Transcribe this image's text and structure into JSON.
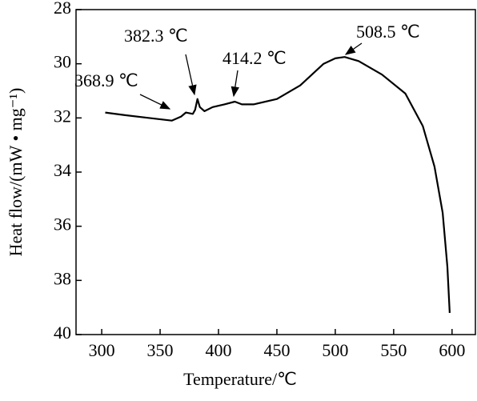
{
  "chart_data": {
    "type": "line",
    "xlabel": "Temperature/℃",
    "ylabel": "Heat flow/(mW • mg⁻¹)",
    "xlim": [
      278,
      620
    ],
    "xticks": [
      300,
      350,
      400,
      450,
      500,
      550,
      600
    ],
    "ylim": [
      40,
      28
    ],
    "yticks": [
      28,
      30,
      32,
      34,
      36,
      38,
      40
    ],
    "inverted_y": true,
    "annotations": [
      "368.9 ℃",
      "382.3 ℃",
      "414.2 ℃",
      "508.5 ℃"
    ],
    "series": [
      {
        "color": "#000000",
        "x": [
          303,
          320,
          340,
          360,
          368,
          372,
          378,
          380,
          382,
          384,
          388,
          395,
          405,
          414,
          420,
          430,
          450,
          470,
          490,
          500,
          508,
          520,
          540,
          560,
          575,
          585,
          592,
          596,
          598
        ],
        "values": [
          31.8,
          31.9,
          32.0,
          32.1,
          31.95,
          31.8,
          31.85,
          31.7,
          31.3,
          31.6,
          31.75,
          31.6,
          31.5,
          31.4,
          31.5,
          31.5,
          31.3,
          30.8,
          30.0,
          29.8,
          29.75,
          29.9,
          30.4,
          31.1,
          32.3,
          33.8,
          35.5,
          37.5,
          39.2
        ]
      }
    ]
  }
}
